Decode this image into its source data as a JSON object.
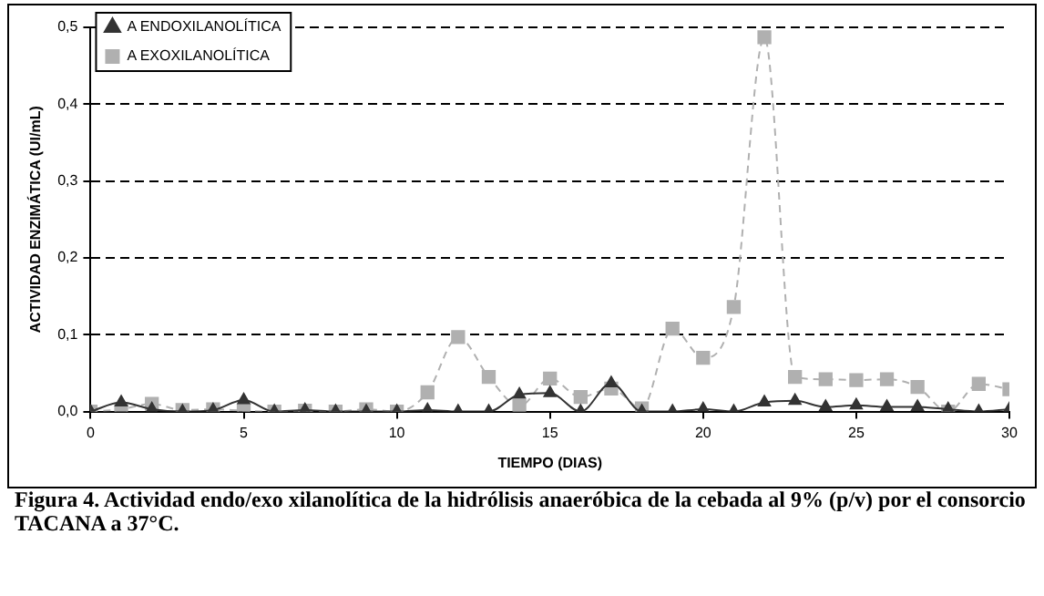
{
  "chart_data": {
    "type": "line",
    "xlabel": "TIEMPO (DIAS)",
    "ylabel": "ACTIVIDAD ENZIMÁTICA (UI/mL)",
    "x": [
      0,
      1,
      2,
      3,
      4,
      5,
      6,
      7,
      8,
      9,
      10,
      11,
      12,
      13,
      14,
      15,
      16,
      17,
      18,
      19,
      20,
      21,
      22,
      23,
      24,
      25,
      26,
      27,
      28,
      29,
      30
    ],
    "series": [
      {
        "name": "A ENDOXILANOLÍTICA",
        "color": "#333333",
        "marker": "triangle",
        "line_style": "solid",
        "values": [
          0,
          0.012,
          0.003,
          0,
          0.002,
          0.015,
          0,
          0.002,
          0,
          0,
          0,
          0.002,
          0,
          0,
          0.022,
          0.024,
          0,
          0.037,
          0,
          0,
          0.003,
          0,
          0.012,
          0.014,
          0.006,
          0.008,
          0.006,
          0.006,
          0.003,
          0,
          0.003
        ]
      },
      {
        "name": "A EXOXILANOLÍTICA",
        "color": "#b0b0b0",
        "marker": "square",
        "line_style": "dashed",
        "values": [
          0,
          0.003,
          0.01,
          0.002,
          0.003,
          0.001,
          0,
          0.001,
          0,
          0.003,
          0,
          0.025,
          0.097,
          0.045,
          0.007,
          0.043,
          0.019,
          0.03,
          0.004,
          0.108,
          0.07,
          0.136,
          0.487,
          0.045,
          0.042,
          0.041,
          0.042,
          0.032,
          0,
          0.036,
          0.029
        ]
      }
    ],
    "xlim": [
      0,
      30
    ],
    "xticks": [
      0,
      5,
      10,
      15,
      20,
      25,
      30
    ],
    "ylim": [
      0,
      0.5
    ],
    "yticks": [
      {
        "value": 0,
        "label": "0,0"
      },
      {
        "value": 0.1,
        "label": "0,1"
      },
      {
        "value": 0.2,
        "label": "0,2"
      },
      {
        "value": 0.3,
        "label": "0,3"
      },
      {
        "value": 0.4,
        "label": "0,4"
      },
      {
        "value": 0.5,
        "label": "0,5"
      }
    ],
    "grid": "y",
    "legend": "top left",
    "annotations": [
      "Figura 4. Actividad endo/exo xilanolítica de la hidrólisis anaeróbica de la cebada al 9% (p/v) por el consorcio TACANA a 37°C."
    ]
  }
}
